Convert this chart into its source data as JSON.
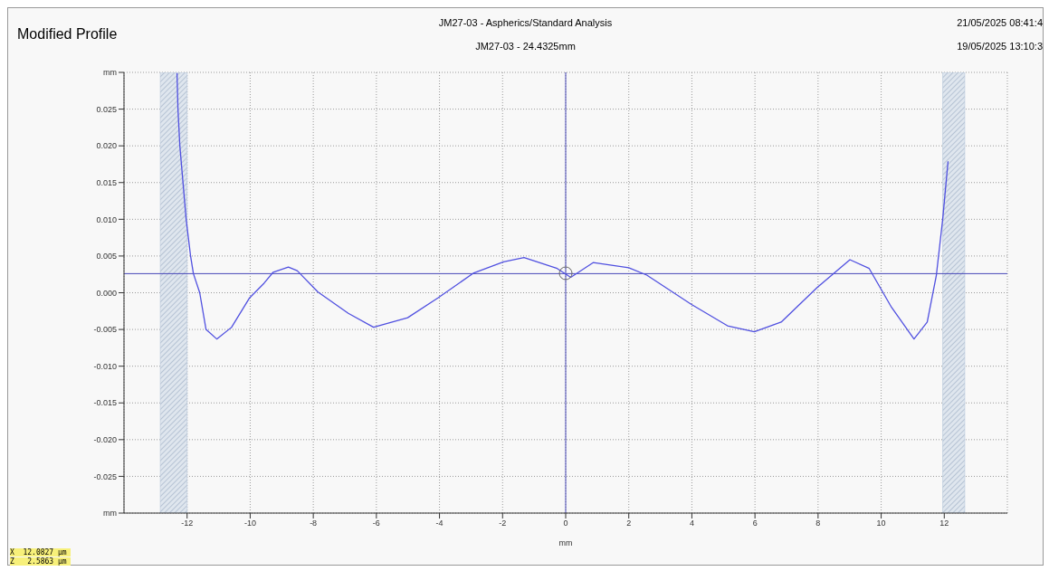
{
  "chart_data": {
    "type": "line",
    "title": "Modified Profile",
    "subtitle": "JM27-03 - Aspherics/Standard Analysis",
    "xlabel": "mm",
    "annotations": [
      "JM27-03 - 24.4325mm",
      "21/05/2025 08:41:4",
      "19/05/2025 13:10:3",
      "X  12.0827 µm",
      "Z   2.5863 µm"
    ],
    "xlim": [
      -14,
      14
    ],
    "xticks": [
      -12,
      -10,
      -8,
      -6,
      -4,
      -2,
      0,
      2,
      4,
      6,
      8,
      10,
      12
    ],
    "ylim": [
      -0.03,
      0.03
    ],
    "yticks": [
      {
        "value": -0.03,
        "label": "mm"
      },
      {
        "value": -0.025,
        "label": "-0.025"
      },
      {
        "value": -0.02,
        "label": "-0.020"
      },
      {
        "value": -0.015,
        "label": "-0.015"
      },
      {
        "value": -0.01,
        "label": "-0.010"
      },
      {
        "value": -0.005,
        "label": "-0.005"
      },
      {
        "value": 0,
        "label": "0.000"
      },
      {
        "value": 0.005,
        "label": "0.005"
      },
      {
        "value": 0.01,
        "label": "0.010"
      },
      {
        "value": 0.015,
        "label": "0.015"
      },
      {
        "value": 0.02,
        "label": "0.020"
      },
      {
        "value": 0.025,
        "label": "0.025"
      },
      {
        "value": 0.03,
        "label": "mm"
      }
    ],
    "grid": true,
    "line_style": "solid",
    "marker": "none",
    "series": [
      {
        "color": "#5050e0",
        "x": [
          -12.32,
          -12.29,
          -12.23,
          -12.03,
          -11.89,
          -11.8,
          -11.6,
          -11.4,
          -11.06,
          -10.59,
          -10.02,
          -9.56,
          -9.27,
          -8.79,
          -8.51,
          -7.85,
          -6.89,
          -6.09,
          -5.01,
          -4.05,
          -2.91,
          -1.97,
          -1.32,
          -0.27,
          0.16,
          0.87,
          2.0,
          2.57,
          3.99,
          5.13,
          5.98,
          6.83,
          7.97,
          9.01,
          9.62,
          10.33,
          11.04,
          11.46,
          11.75,
          11.95,
          12.12
        ],
        "values": [
          0.0299,
          0.025,
          0.02,
          0.01,
          0.005,
          0.0026,
          0.0,
          -0.005,
          -0.0063,
          -0.0047,
          -0.0007,
          0.0013,
          0.0028,
          0.0035,
          0.003,
          0.0001,
          -0.0028,
          -0.0047,
          -0.0034,
          -0.0007,
          0.0027,
          0.0042,
          0.0048,
          0.0033,
          0.0021,
          0.0041,
          0.0034,
          0.0024,
          -0.0016,
          -0.0045,
          -0.0053,
          -0.004,
          0.0007,
          0.0045,
          0.0033,
          -0.002,
          -0.0063,
          -0.004,
          0.0024,
          0.01,
          0.0179
        ]
      }
    ],
    "ref_lines": [
      {
        "axis": "y",
        "value": 0.0026,
        "color": "#4848b8"
      },
      {
        "axis": "x",
        "value": 0,
        "color": "#4848b8"
      }
    ],
    "bands": [
      {
        "axis": "x",
        "from": -12.85,
        "to": -12.0,
        "color": "#b8c8dc"
      },
      {
        "axis": "x",
        "from": 11.95,
        "to": 12.65,
        "color": "#b8c8dc"
      }
    ]
  }
}
